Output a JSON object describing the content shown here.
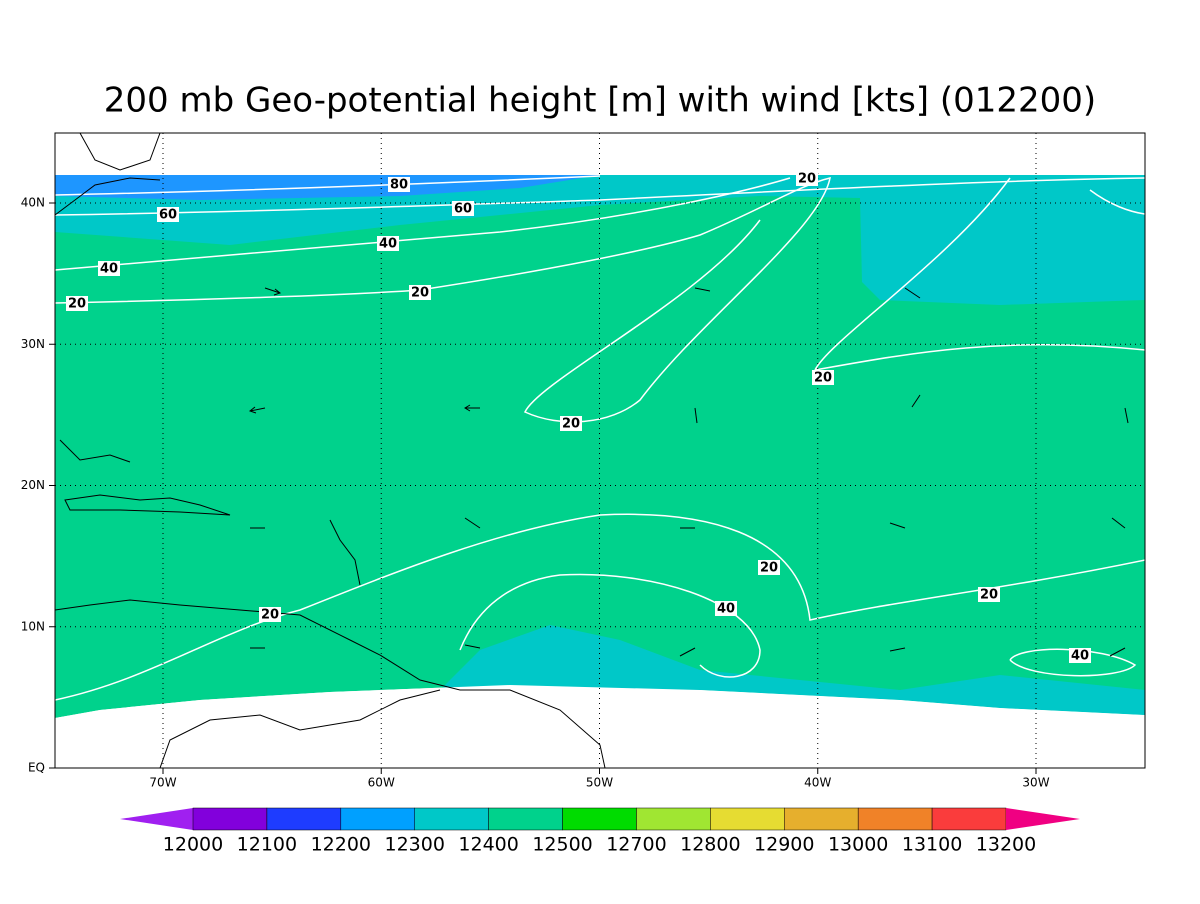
{
  "title": "200 mb Geo-potential height [m] with wind [kts] (012200)",
  "lon_labels": [
    "70W",
    "60W",
    "50W",
    "40W",
    "30W"
  ],
  "lat_labels": [
    "EQ",
    "10N",
    "20N",
    "30N",
    "40N"
  ],
  "colorbar": {
    "labels": [
      "12000",
      "12100",
      "12200",
      "12300",
      "12400",
      "12500",
      "12700",
      "12800",
      "12900",
      "13000",
      "13100",
      "13200"
    ],
    "colors": [
      "#a020f0",
      "#8200dc",
      "#1e3cff",
      "#00a0ff",
      "#00c8c8",
      "#00d28c",
      "#00dc00",
      "#a0e632",
      "#e6dc32",
      "#e6af2d",
      "#f08228",
      "#fa3c3c",
      "#f00082"
    ]
  },
  "contour_labels": [
    "80",
    "60",
    "60",
    "40",
    "40",
    "20",
    "20",
    "20",
    "20",
    "20",
    "20",
    "20",
    "40",
    "20",
    "40"
  ]
}
